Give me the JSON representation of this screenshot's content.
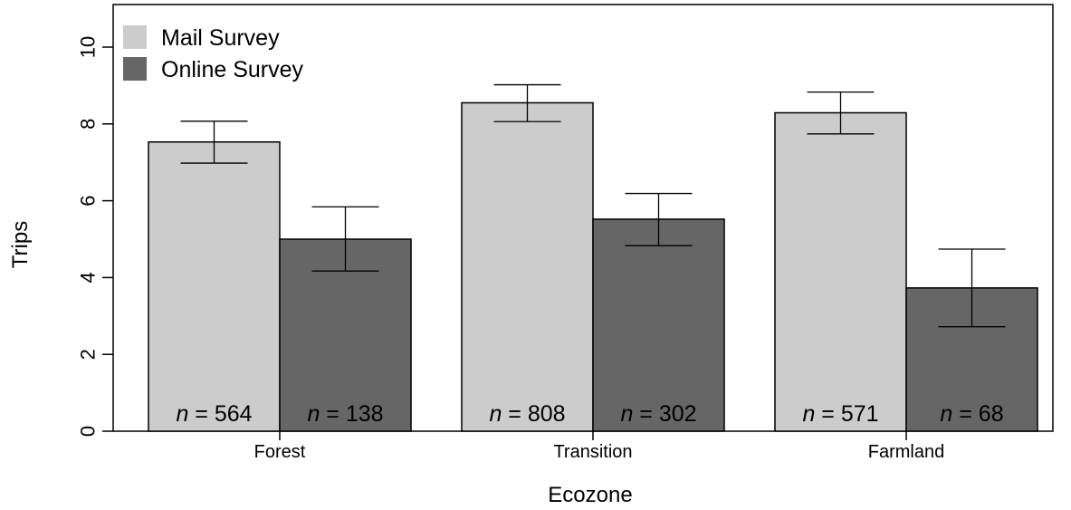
{
  "chart_data": {
    "type": "bar",
    "title": "",
    "xlabel": "Ecozone",
    "ylabel": "Trips",
    "ylim": [
      0,
      11
    ],
    "yticks": [
      "0",
      "2",
      "4",
      "6",
      "8",
      "10"
    ],
    "categories": [
      "Forest",
      "Transition",
      "Farmland"
    ],
    "grid": false,
    "legend_position": "top-left",
    "n_prefix": "n",
    "series": [
      {
        "name": "Mail Survey",
        "color": "#cccccc",
        "values": [
          7.53,
          8.55,
          8.29
        ],
        "ci_low": [
          6.98,
          8.06,
          7.74
        ],
        "ci_high": [
          8.07,
          9.02,
          8.83
        ],
        "n_labels": [
          "= 564",
          "= 808",
          "= 571"
        ]
      },
      {
        "name": "Online Survey",
        "color": "#666666",
        "values": [
          5.0,
          5.52,
          3.73
        ],
        "ci_low": [
          4.17,
          4.83,
          2.72
        ],
        "ci_high": [
          5.84,
          6.19,
          4.74
        ],
        "n_labels": [
          "= 138",
          "= 302",
          "= 68"
        ]
      }
    ]
  }
}
